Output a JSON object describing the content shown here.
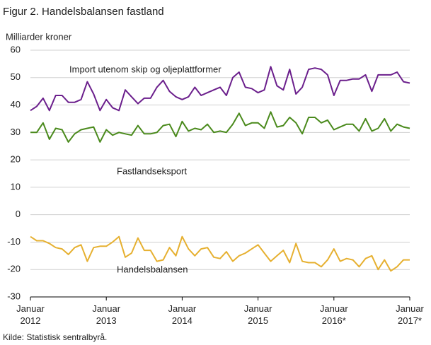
{
  "chart_data": {
    "type": "line",
    "title": "Figur 2. Handelsbalansen fastland",
    "y_label": "Milliarder  kroner",
    "source": "Kilde: Statistisk sentralbyrå.",
    "categories": [
      "Januar 2012",
      null,
      null,
      null,
      null,
      null,
      null,
      null,
      null,
      null,
      null,
      null,
      "Januar 2013",
      null,
      null,
      null,
      null,
      null,
      null,
      null,
      null,
      null,
      null,
      null,
      "Januar 2014",
      null,
      null,
      null,
      null,
      null,
      null,
      null,
      null,
      null,
      null,
      null,
      "Januar 2015",
      null,
      null,
      null,
      null,
      null,
      null,
      null,
      null,
      null,
      null,
      null,
      "Januar 2016*",
      null,
      null,
      null,
      null,
      null,
      null,
      null,
      null,
      null,
      null,
      null,
      "Januar 2017*"
    ],
    "ylim": [
      -30,
      60
    ],
    "yticks": [
      -30,
      -20,
      -10,
      0,
      10,
      20,
      30,
      40,
      50,
      60
    ],
    "grid": true,
    "series": [
      {
        "name": "Import utenom skip og oljeplattformer",
        "color": "#6b1f8c",
        "values": [
          38,
          39.5,
          42.5,
          38,
          43.5,
          43.5,
          41,
          41,
          42,
          48.5,
          44,
          38,
          42,
          39,
          38,
          45.5,
          43,
          40.5,
          42.5,
          42.5,
          46.5,
          49,
          45,
          43,
          42,
          43,
          46.5,
          43.5,
          44.5,
          45.5,
          46.5,
          43.5,
          50,
          52,
          46.5,
          46,
          44.5,
          45.5,
          54,
          47,
          45.5,
          53,
          44,
          46.5,
          53,
          53.5,
          53,
          51,
          43.5,
          49,
          49,
          49.5,
          49.5,
          51,
          45,
          51,
          51,
          51,
          52,
          48.5,
          48
        ]
      },
      {
        "name": "Fastlandseksport",
        "color": "#4a8a1c",
        "values": [
          30,
          30,
          33.5,
          27.5,
          31.5,
          31,
          26.5,
          29.5,
          31,
          31.5,
          32,
          26.5,
          31,
          29,
          30,
          29.5,
          29,
          32.5,
          29.5,
          29.5,
          30,
          32.5,
          33,
          28.5,
          34,
          30.5,
          31.5,
          31,
          33,
          30,
          30.5,
          30,
          33,
          37,
          32.5,
          33.5,
          33.5,
          31.5,
          37.5,
          32,
          32.5,
          35.5,
          33.5,
          29.5,
          35.5,
          35.5,
          33.5,
          34.5,
          31,
          32,
          33,
          33,
          30.5,
          35,
          30.5,
          31.5,
          35,
          30.5,
          33,
          32,
          31.5
        ]
      },
      {
        "name": "Handelsbalansen",
        "color": "#e6b030",
        "values": [
          -8,
          -9.5,
          -9.5,
          -10.5,
          -12,
          -12.5,
          -14.5,
          -12,
          -11,
          -17,
          -12,
          -11.5,
          -11.5,
          -10,
          -8,
          -15.5,
          -14,
          -8.5,
          -13,
          -13,
          -17,
          -16.5,
          -12,
          -15,
          -8,
          -12.5,
          -15,
          -12.5,
          -12,
          -15.5,
          -16,
          -13.5,
          -17,
          -15,
          -14,
          -12.5,
          -11,
          -14,
          -17,
          -15,
          -13,
          -17.5,
          -10.5,
          -17,
          -17.5,
          -17.5,
          -19,
          -16.5,
          -12.5,
          -17,
          -16,
          -16.5,
          -19,
          -16,
          -15,
          -20,
          -16.5,
          -20.5,
          -19,
          -16.5,
          -16.5
        ]
      }
    ]
  }
}
